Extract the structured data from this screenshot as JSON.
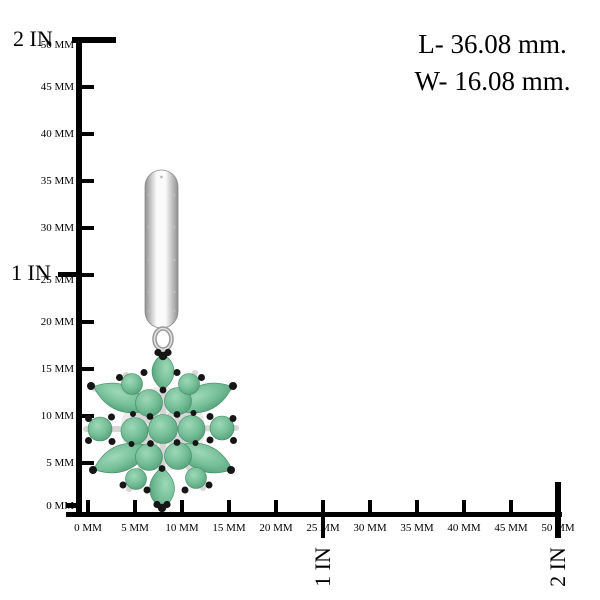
{
  "annotations": {
    "length": "L- 36.08 mm.",
    "width": "W- 16.08 mm."
  },
  "vertical_ruler": {
    "mm_tick_labels": [
      "0 MM",
      "5 MM",
      "10 MM",
      "15 MM",
      "20 MM",
      "25 MM",
      "30 MM",
      "35 MM",
      "40 MM",
      "45 MM",
      "50 MM"
    ],
    "inch_marks": [
      {
        "label": "1 IN",
        "mm": 25
      },
      {
        "label": "2 IN",
        "mm": 50
      }
    ]
  },
  "horizontal_ruler": {
    "mm_tick_labels": [
      "0 MM",
      "5 MM",
      "10 MM",
      "15 MM",
      "20 MM",
      "25 MM",
      "30 MM",
      "35 MM",
      "40 MM",
      "45 MM",
      "50 MM"
    ],
    "inch_marks": [
      {
        "label": "1 IN",
        "mm": 25
      },
      {
        "label": "2 IN",
        "mm": 50
      }
    ]
  },
  "earring": {
    "description": "Sterling silver drop earring with hinged bead-textured hoop and emerald cluster flower with black accent stones",
    "colors": {
      "stone_green_light": "#9ed8b8",
      "stone_green": "#74be97",
      "stone_green_dark": "#4f9c74",
      "stone_rim": "#3f8a64",
      "accent_black": "#161616",
      "metal_light": "#fafafa",
      "metal_dark": "#909090",
      "ruler_black": "#000000"
    }
  }
}
